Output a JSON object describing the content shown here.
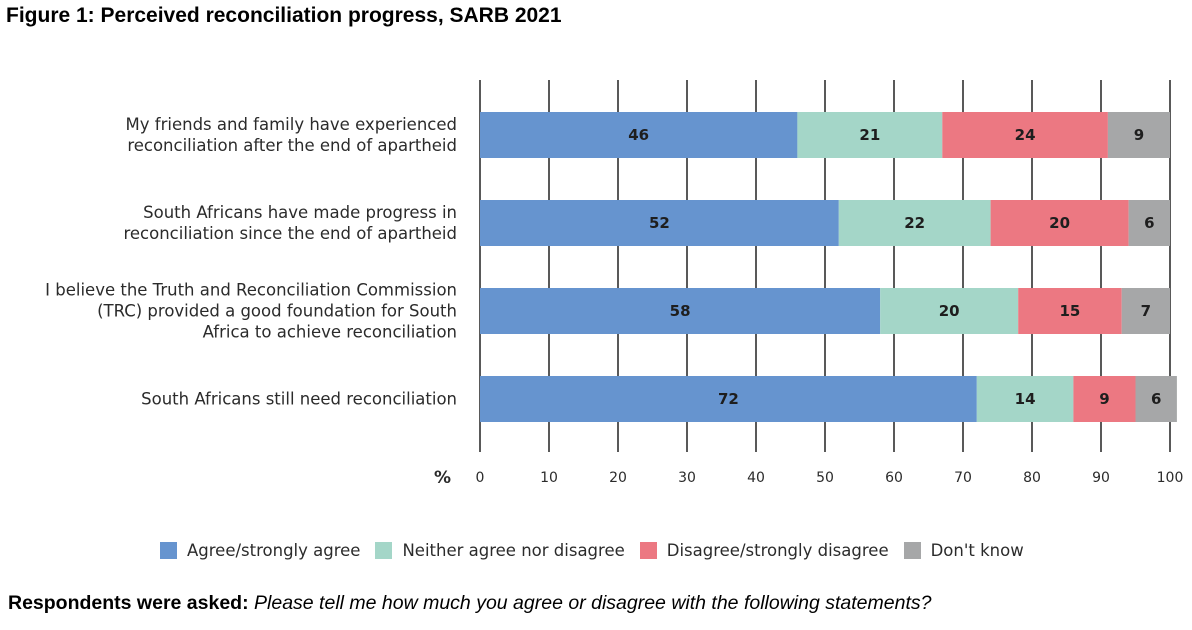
{
  "figure": {
    "title": "Figure 1: Perceived reconciliation progress, SARB 2021"
  },
  "chart_data": {
    "type": "bar",
    "orientation": "horizontal",
    "stacked": true,
    "unit_label": "%",
    "xlim": [
      0,
      100
    ],
    "xticks": [
      "0",
      "10",
      "20",
      "30",
      "40",
      "50",
      "60",
      "70",
      "80",
      "90",
      "100"
    ],
    "grid": true,
    "legend_position": "bottom",
    "categories": [
      [
        "My friends and family have experienced",
        "reconciliation after the end of apartheid"
      ],
      [
        "South Africans have made progress in",
        "reconciliation since the end of apartheid"
      ],
      [
        "I believe the Truth and Reconciliation Commission",
        "(TRC) provided a good foundation for South",
        "Africa to achieve reconciliation"
      ],
      [
        "South Africans still need reconciliation"
      ]
    ],
    "series": [
      {
        "name": "Agree/strongly agree",
        "color": "#6694cf",
        "values": [
          46,
          52,
          58,
          72
        ]
      },
      {
        "name": "Neither agree nor disagree",
        "color": "#a4d6c8",
        "values": [
          21,
          22,
          20,
          14
        ]
      },
      {
        "name": "Disagree/strongly disagree",
        "color": "#ec7882",
        "values": [
          24,
          20,
          15,
          9
        ]
      },
      {
        "name": "Don't know",
        "color": "#a6a7a8",
        "values": [
          9,
          6,
          7,
          6
        ]
      }
    ]
  },
  "footnote": {
    "lead": "Respondents were asked:",
    "question": "Please tell me how much you agree or disagree with the following statements?"
  }
}
